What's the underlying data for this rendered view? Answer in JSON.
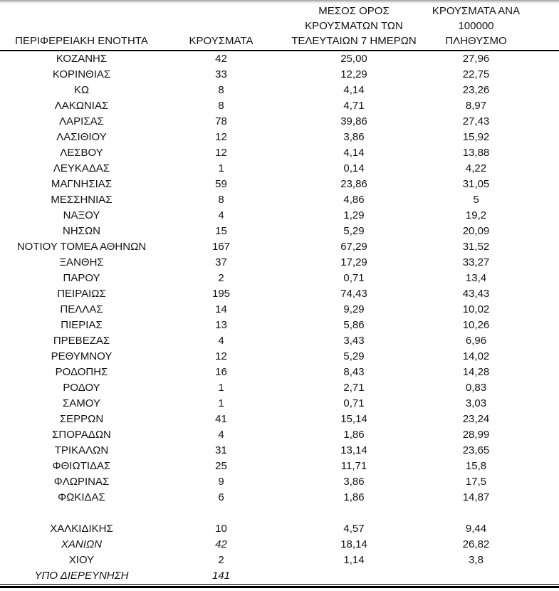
{
  "colors": {
    "text": "#131313",
    "background": "#ffffff",
    "rule": "#000000",
    "window_edge": "#9f9f9f"
  },
  "table": {
    "columns": [
      {
        "label": "ΠΕΡΙΦΕΡΕΙΑΚΗ ΕΝΟΤΗΤΑ"
      },
      {
        "label": "ΚΡΟΥΣΜΑΤΑ"
      },
      {
        "label": "ΜΕΣΟΣ ΟΡΟΣ\nΚΡΟΥΣΜΑΤΩΝ ΤΩΝ\nΤΕΛΕΥΤΑΙΩΝ 7 ΗΜΕΡΩΝ"
      },
      {
        "label": "ΚΡΟΥΣΜΑΤΑ ΑΝΑ\n100000 ΠΛΗΘΥΣΜΟ"
      }
    ],
    "rows": [
      {
        "region": "ΚΟΖΑΝΗΣ",
        "cases": "42",
        "avg7day": "25,00",
        "per100k": "27,96"
      },
      {
        "region": "ΚΟΡΙΝΘΙΑΣ",
        "cases": "33",
        "avg7day": "12,29",
        "per100k": "22,75"
      },
      {
        "region": "ΚΩ",
        "cases": "8",
        "avg7day": "4,14",
        "per100k": "23,26"
      },
      {
        "region": "ΛΑΚΩΝΙΑΣ",
        "cases": "8",
        "avg7day": "4,71",
        "per100k": "8,97"
      },
      {
        "region": "ΛΑΡΙΣΑΣ",
        "cases": "78",
        "avg7day": "39,86",
        "per100k": "27,43"
      },
      {
        "region": "ΛΑΣΙΘΙΟΥ",
        "cases": "12",
        "avg7day": "3,86",
        "per100k": "15,92"
      },
      {
        "region": "ΛΕΣΒΟΥ",
        "cases": "12",
        "avg7day": "4,14",
        "per100k": "13,88"
      },
      {
        "region": "ΛΕΥΚΑΔΑΣ",
        "cases": "1",
        "avg7day": "0,14",
        "per100k": "4,22"
      },
      {
        "region": "ΜΑΓΝΗΣΙΑΣ",
        "cases": "59",
        "avg7day": "23,86",
        "per100k": "31,05"
      },
      {
        "region": "ΜΕΣΣΗΝΙΑΣ",
        "cases": "8",
        "avg7day": "4,86",
        "per100k": "5"
      },
      {
        "region": "ΝΑΞΟΥ",
        "cases": "4",
        "avg7day": "1,29",
        "per100k": "19,2"
      },
      {
        "region": "ΝΗΣΩΝ",
        "cases": "15",
        "avg7day": "5,29",
        "per100k": "20,09"
      },
      {
        "region": "ΝΟΤΙΟΥ ΤΟΜΕΑ ΑΘΗΝΩΝ",
        "cases": "167",
        "avg7day": "67,29",
        "per100k": "31,52"
      },
      {
        "region": "ΞΑΝΘΗΣ",
        "cases": "37",
        "avg7day": "17,29",
        "per100k": "33,27"
      },
      {
        "region": "ΠΑΡΟΥ",
        "cases": "2",
        "avg7day": "0,71",
        "per100k": "13,4"
      },
      {
        "region": "ΠΕΙΡΑΙΩΣ",
        "cases": "195",
        "avg7day": "74,43",
        "per100k": "43,43"
      },
      {
        "region": "ΠΕΛΛΑΣ",
        "cases": "14",
        "avg7day": "9,29",
        "per100k": "10,02"
      },
      {
        "region": "ΠΙΕΡΙΑΣ",
        "cases": "13",
        "avg7day": "5,86",
        "per100k": "10,26"
      },
      {
        "region": "ΠΡΕΒΕΖΑΣ",
        "cases": "4",
        "avg7day": "3,43",
        "per100k": "6,96"
      },
      {
        "region": "ΡΕΘΥΜΝΟΥ",
        "cases": "12",
        "avg7day": "5,29",
        "per100k": "14,02"
      },
      {
        "region": "ΡΟΔΟΠΗΣ",
        "cases": "16",
        "avg7day": "8,43",
        "per100k": "14,28"
      },
      {
        "region": "ΡΟΔΟΥ",
        "cases": "1",
        "avg7day": "2,71",
        "per100k": "0,83"
      },
      {
        "region": "ΣΑΜΟΥ",
        "cases": "1",
        "avg7day": "0,71",
        "per100k": "3,03"
      },
      {
        "region": "ΣΕΡΡΩΝ",
        "cases": "41",
        "avg7day": "15,14",
        "per100k": "23,24"
      },
      {
        "region": "ΣΠΟΡΑΔΩΝ",
        "cases": "4",
        "avg7day": "1,86",
        "per100k": "28,99"
      },
      {
        "region": "ΤΡΙΚΑΛΩΝ",
        "cases": "31",
        "avg7day": "13,14",
        "per100k": "23,65"
      },
      {
        "region": "ΦΘΙΩΤΙΔΑΣ",
        "cases": "25",
        "avg7day": "11,71",
        "per100k": "15,8"
      },
      {
        "region": "ΦΛΩΡΙΝΑΣ",
        "cases": "9",
        "avg7day": "3,86",
        "per100k": "17,5"
      },
      {
        "region": "ΦΩΚΙΔΑΣ",
        "cases": "6",
        "avg7day": "1,86",
        "per100k": "14,87"
      },
      {
        "region": "",
        "cases": "",
        "avg7day": "",
        "per100k": "",
        "spacer": true
      },
      {
        "region": "ΧΑΛΚΙΔΙΚΗΣ",
        "cases": "10",
        "avg7day": "4,57",
        "per100k": "9,44"
      },
      {
        "region": "ΧΑΝΙΩΝ",
        "cases": "42",
        "avg7day": "18,14",
        "per100k": "26,82",
        "italic": true
      },
      {
        "region": "ΧΙΟΥ",
        "cases": "2",
        "avg7day": "1,14",
        "per100k": "3,8"
      },
      {
        "region": "ΥΠΟ ΔΙΕΡΕΥΝΗΣΗ",
        "cases": "141",
        "avg7day": "",
        "per100k": "",
        "italic": true
      }
    ]
  }
}
